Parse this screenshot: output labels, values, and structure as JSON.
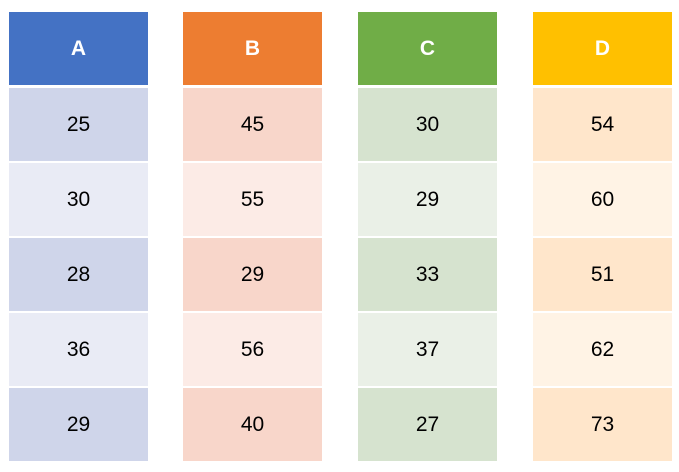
{
  "chart_data": {
    "type": "table",
    "columns": [
      "A",
      "B",
      "C",
      "D"
    ],
    "rows": [
      [
        25,
        45,
        30,
        54
      ],
      [
        30,
        55,
        29,
        60
      ],
      [
        28,
        29,
        33,
        51
      ],
      [
        36,
        56,
        37,
        62
      ],
      [
        29,
        40,
        27,
        73
      ]
    ]
  },
  "colors": {
    "A": {
      "header": "#4472C4",
      "band_dark": "#CFD5EA",
      "band_light": "#E9EBF5"
    },
    "B": {
      "header": "#ED7D31",
      "band_dark": "#F8D6CA",
      "band_light": "#FCEBE6"
    },
    "C": {
      "header": "#70AD47",
      "band_dark": "#D6E3CF",
      "band_light": "#EAF0E7"
    },
    "D": {
      "header": "#FFC000",
      "band_dark": "#FFE6CB",
      "band_light": "#FFF3E5"
    }
  }
}
